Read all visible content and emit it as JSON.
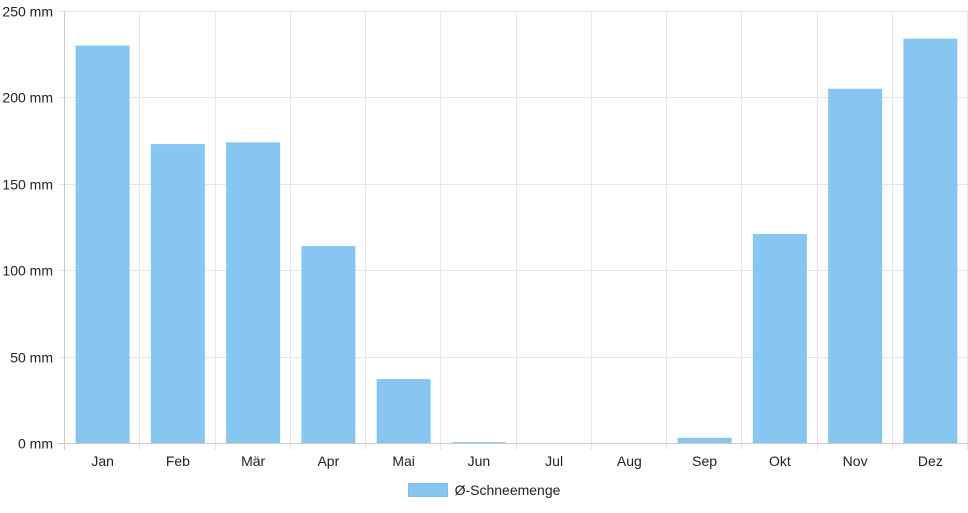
{
  "chart_data": {
    "type": "bar",
    "categories": [
      "Jan",
      "Feb",
      "Mär",
      "Apr",
      "Mai",
      "Jun",
      "Jul",
      "Aug",
      "Sep",
      "Okt",
      "Nov",
      "Dez"
    ],
    "series": [
      {
        "name": "Ø-Schneemenge",
        "values": [
          230,
          173,
          174,
          114,
          37,
          0.5,
          0,
          0,
          3,
          121,
          205,
          234
        ]
      }
    ],
    "yticks": [
      "0 mm",
      "50 mm",
      "100 mm",
      "150 mm",
      "200 mm",
      "250 mm"
    ],
    "ylim": [
      0,
      250
    ],
    "grid": true,
    "legend_position": "bottom",
    "colors": {
      "bar": "#88c6f2",
      "grid": "#e6e6e6",
      "axis": "#cccccc",
      "text": "#222222"
    }
  }
}
